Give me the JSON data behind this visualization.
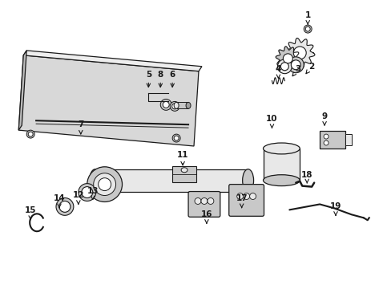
{
  "bg_color": "#ffffff",
  "lc": "#1a1a1a",
  "fc_light": "#e8e8e8",
  "fc_mid": "#c8c8c8",
  "fc_dark": "#a0a0a0",
  "fig_width": 4.89,
  "fig_height": 3.6,
  "dpi": 100,
  "labels": [
    [
      "1",
      385,
      18,
      385,
      30
    ],
    [
      "2",
      390,
      82,
      382,
      92
    ],
    [
      "3",
      373,
      85,
      365,
      95
    ],
    [
      "4",
      348,
      85,
      348,
      98
    ],
    [
      "5",
      185,
      92,
      185,
      112
    ],
    [
      "6",
      215,
      92,
      215,
      112
    ],
    [
      "7",
      100,
      155,
      100,
      168
    ],
    [
      "8",
      200,
      92,
      200,
      112
    ],
    [
      "9",
      406,
      145,
      406,
      157
    ],
    [
      "10",
      340,
      148,
      340,
      163
    ],
    [
      "11",
      228,
      193,
      228,
      210
    ],
    [
      "12",
      97,
      243,
      97,
      256
    ],
    [
      "13",
      115,
      238,
      115,
      253
    ],
    [
      "14",
      73,
      248,
      73,
      263
    ],
    [
      "15",
      37,
      263,
      37,
      278
    ],
    [
      "16",
      258,
      268,
      258,
      280
    ],
    [
      "17",
      302,
      248,
      302,
      263
    ],
    [
      "18",
      384,
      218,
      384,
      232
    ],
    [
      "19",
      420,
      258,
      420,
      270
    ]
  ]
}
